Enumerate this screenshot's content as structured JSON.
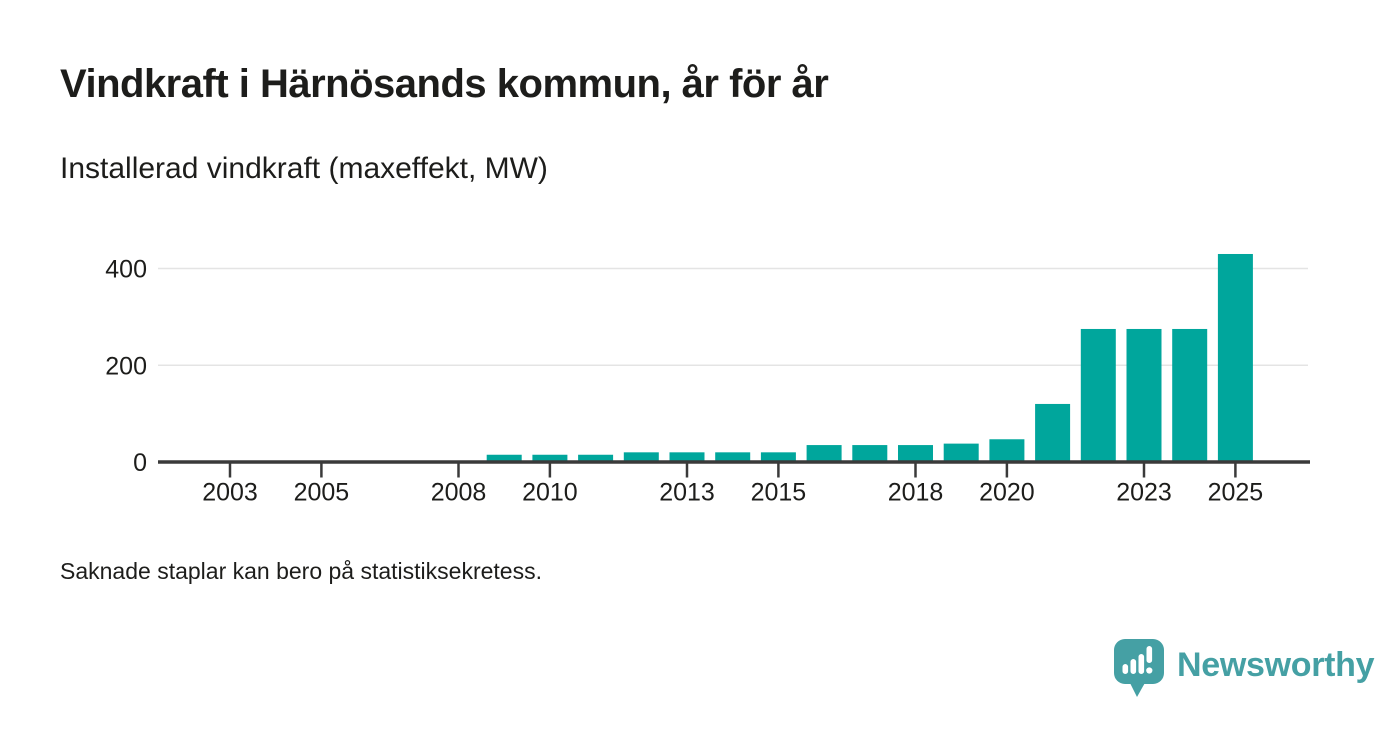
{
  "header": {
    "title": "Vindkraft i Härnösands kommun, år för år",
    "subtitle": "Installerad vindkraft (maxeffekt, MW)"
  },
  "chart_data": {
    "type": "bar",
    "title": "Vindkraft i Härnösands kommun, år för år",
    "subtitle": "Installerad vindkraft (maxeffekt, MW)",
    "ylabel": "MW (maxeffekt)",
    "x": [
      2009,
      2010,
      2011,
      2012,
      2013,
      2014,
      2015,
      2016,
      2017,
      2018,
      2019,
      2020,
      2021,
      2022,
      2023,
      2024,
      2025
    ],
    "values": [
      15,
      15,
      15,
      20,
      20,
      20,
      20,
      35,
      35,
      35,
      38,
      47,
      120,
      275,
      275,
      275,
      430
    ],
    "x_domain": [
      2001.4,
      2026.6
    ],
    "ylim": [
      0,
      445
    ],
    "yticks": [
      0,
      200,
      400
    ],
    "xticks": [
      2003,
      2005,
      2008,
      2010,
      2013,
      2015,
      2018,
      2020,
      2023,
      2025
    ],
    "grid": "horizontal-only",
    "legend": "none",
    "bar_color": "#00a69c",
    "axis_color": "#3a3a3a",
    "grid_color": "#e4e4e4",
    "tick_label_color": "#1d1d1b"
  },
  "footer": {
    "note": "Saknade staplar kan bero på statistiksekretess.",
    "brand": {
      "name": "Newsworthy",
      "color": "#45a0a4",
      "icon": "newsworthy-speech-bubble-bar-chart-icon"
    }
  }
}
